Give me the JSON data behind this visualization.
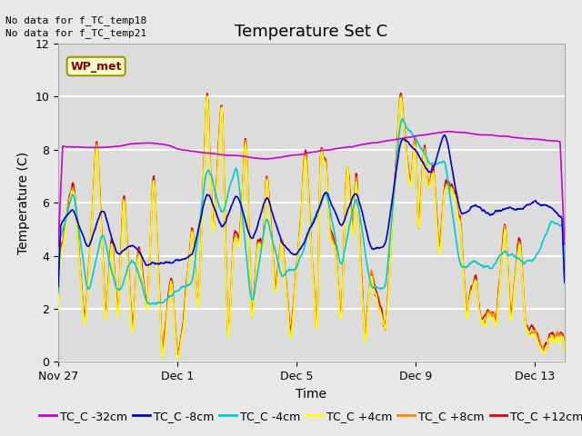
{
  "title": "Temperature Set C",
  "xlabel": "Time",
  "ylabel": "Temperature (C)",
  "ylim": [
    0,
    12
  ],
  "xlim": [
    0,
    17
  ],
  "annotations": [
    "No data for f_TC_temp18",
    "No data for f_TC_temp21"
  ],
  "wp_met_label": "WP_met",
  "xtick_positions": [
    0,
    4,
    8,
    12,
    16
  ],
  "xtick_labels": [
    "Nov 27",
    "Dec 1",
    "Dec 5",
    "Dec 9",
    "Dec 13"
  ],
  "legend_labels": [
    "TC_C -32cm",
    "TC_C -8cm",
    "TC_C -4cm",
    "TC_C +4cm",
    "TC_C +8cm",
    "TC_C +12cm"
  ],
  "legend_colors": [
    "#cc00cc",
    "#0000cc",
    "#00cccc",
    "#ffff00",
    "#ff8800",
    "#dd0000"
  ],
  "fig_bg_color": "#e8e8e8",
  "plot_bg_color": "#dcdcdc",
  "grid_color": "#ffffff",
  "title_fontsize": 13,
  "label_fontsize": 10,
  "tick_fontsize": 9,
  "legend_fontsize": 9,
  "linewidth": 1.2
}
